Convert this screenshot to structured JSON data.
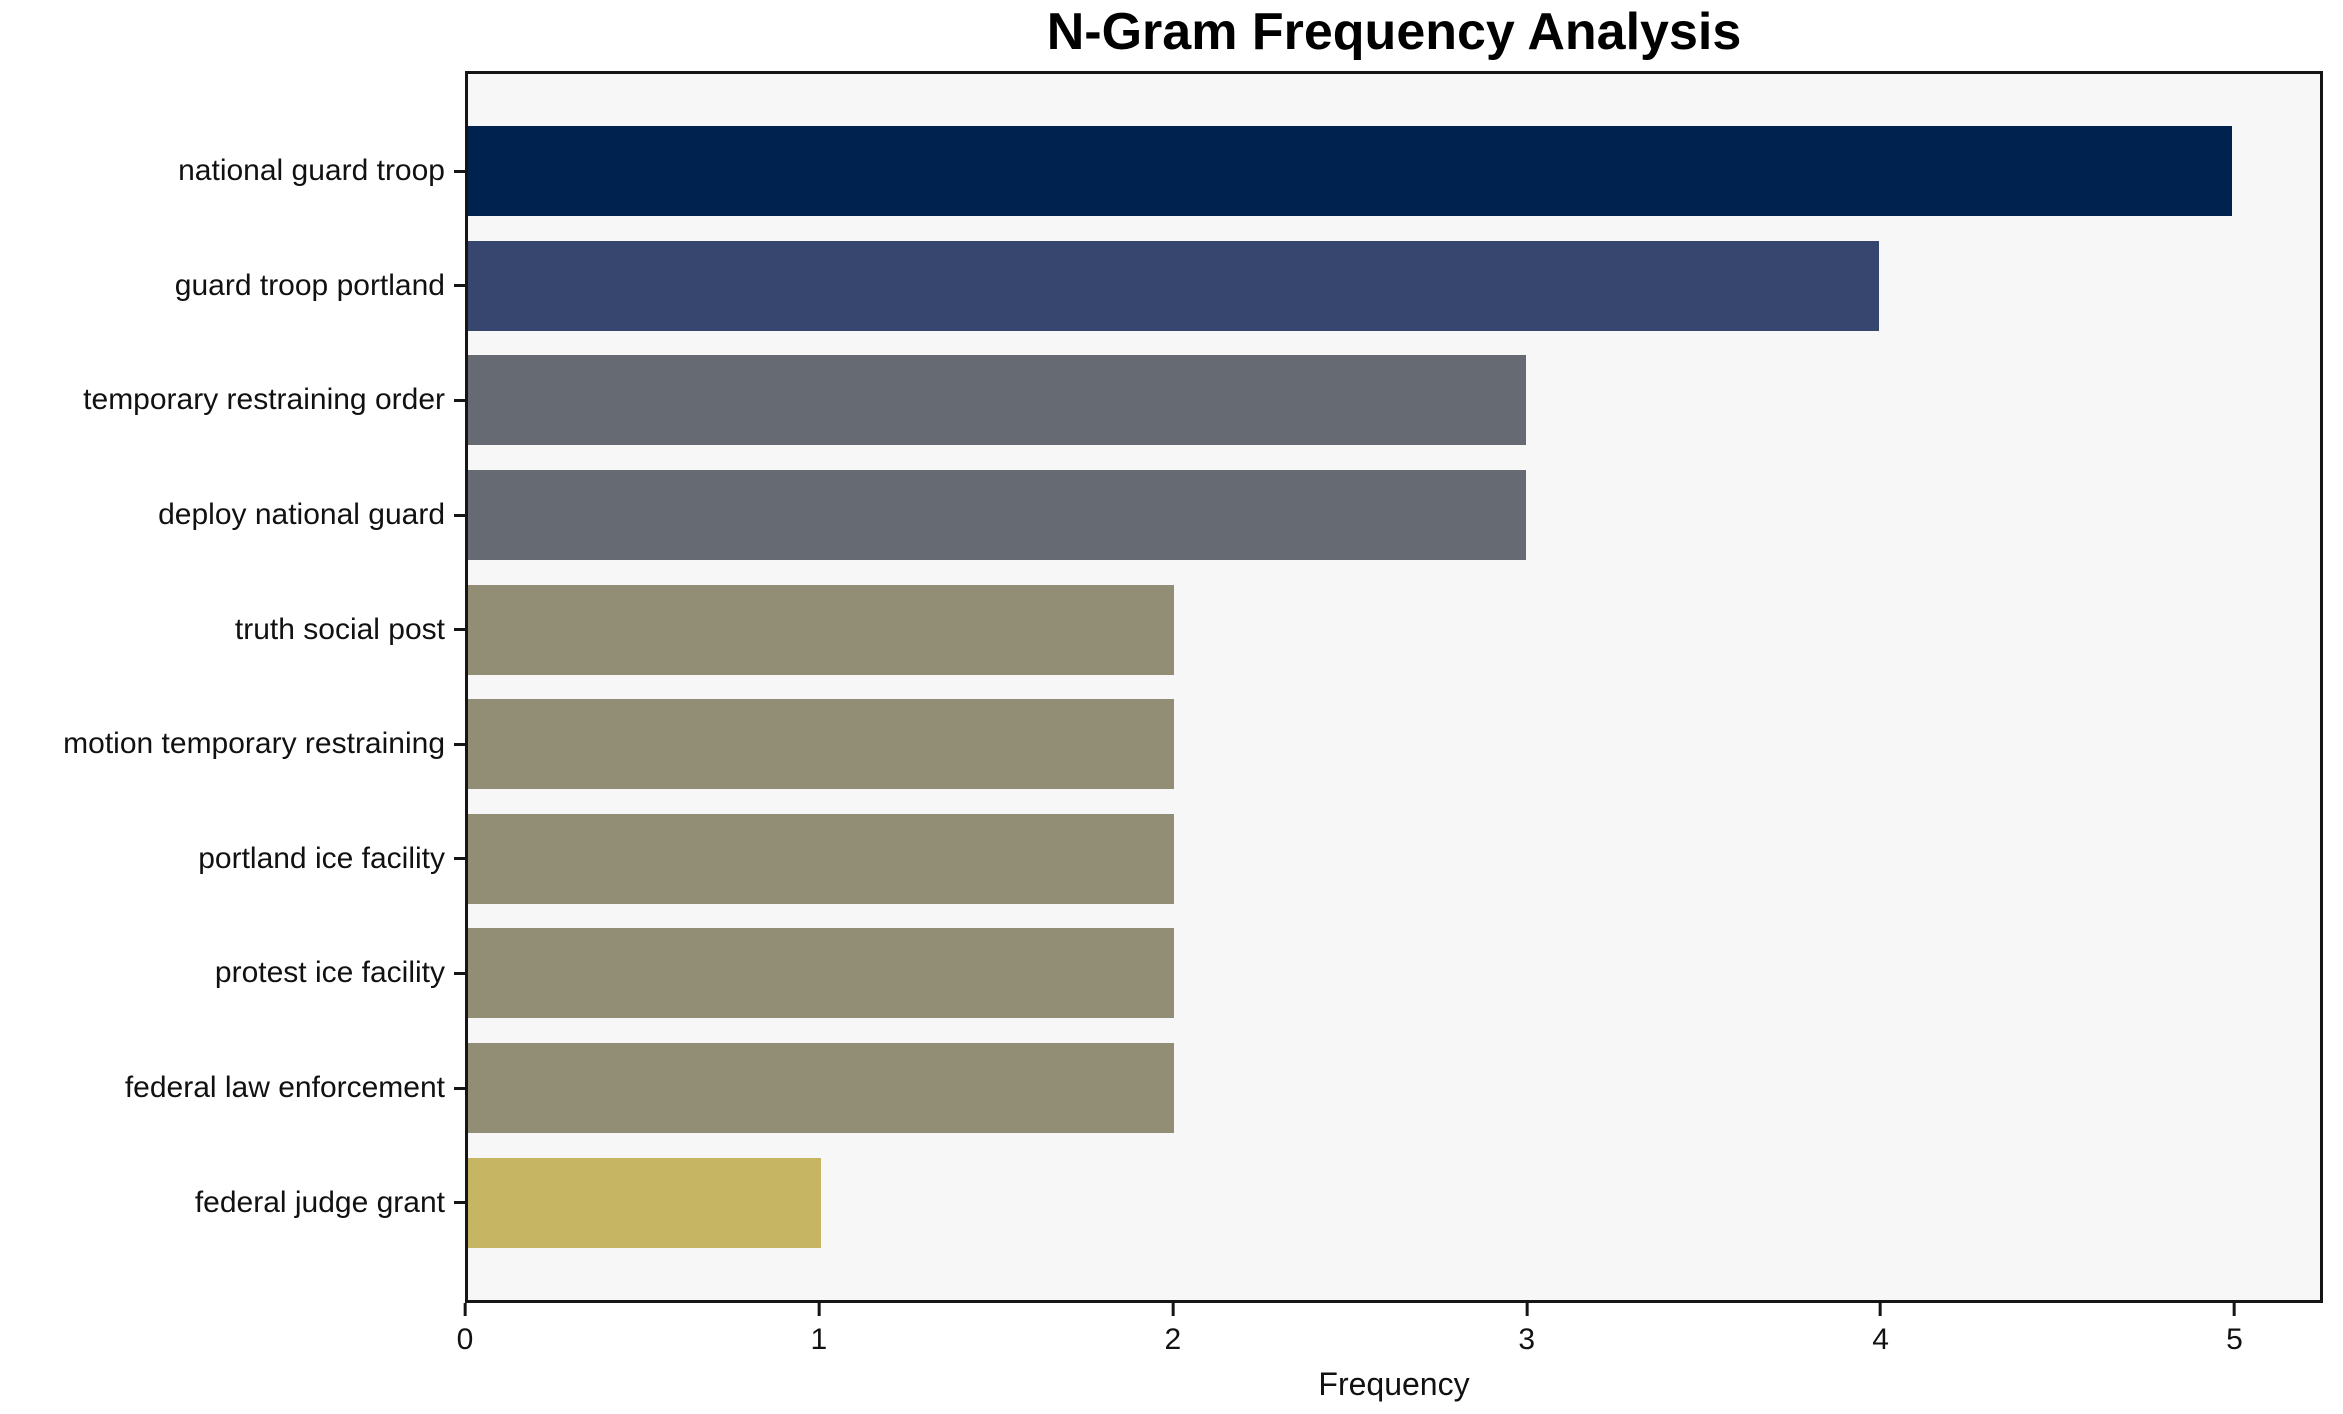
{
  "title": "N-Gram Frequency Analysis",
  "xlabel": "Frequency",
  "chart_data": {
    "type": "bar",
    "orientation": "horizontal",
    "title": "N-Gram Frequency Analysis",
    "xlabel": "Frequency",
    "ylabel": "",
    "xlim": [
      0,
      5.25
    ],
    "x_ticks": [
      0,
      1,
      2,
      3,
      4,
      5
    ],
    "grid": false,
    "legend": "none",
    "plot_background": "#f7f7f7",
    "spine_color": "#151515",
    "categories": [
      "national guard troop",
      "guard troop portland",
      "temporary restraining order",
      "deploy national guard",
      "truth social post",
      "motion temporary restraining",
      "portland ice facility",
      "protest ice facility",
      "federal law enforcement",
      "federal judge grant"
    ],
    "values": [
      5,
      4,
      3,
      3,
      2,
      2,
      2,
      2,
      2,
      1
    ],
    "bar_colors": [
      "#00224e",
      "#36466e",
      "#666a72",
      "#666a72",
      "#928e75",
      "#928e75",
      "#928e75",
      "#928e75",
      "#928e75",
      "#c6b664"
    ]
  }
}
